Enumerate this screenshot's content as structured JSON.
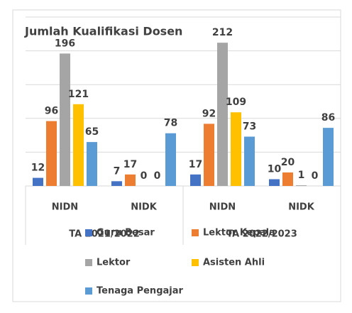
{
  "chart_data": {
    "type": "bar",
    "title": "Jumlah Kualifikasi Dosen",
    "categories": [
      "NIDN",
      "NIDK",
      "NIDN",
      "NIDK"
    ],
    "groups": [
      "TA 2021/2022",
      "TA 2022/2023"
    ],
    "series": [
      {
        "name": "Guru Besar",
        "color": "#4472c4",
        "values": [
          12,
          7,
          17,
          10
        ]
      },
      {
        "name": "Lektor Kepala",
        "color": "#ed7d31",
        "values": [
          96,
          17,
          92,
          20
        ]
      },
      {
        "name": "Lektor",
        "color": "#a5a5a5",
        "values": [
          196,
          0,
          212,
          1
        ]
      },
      {
        "name": "Asisten Ahli",
        "color": "#ffc000",
        "values": [
          121,
          0,
          109,
          0
        ]
      },
      {
        "name": "Tenaga Pengajar",
        "color": "#5b9bd5",
        "values": [
          65,
          78,
          73,
          86
        ]
      }
    ],
    "ylim": [
      0,
      250
    ],
    "yticks": [
      0,
      50,
      100,
      150,
      200,
      250
    ],
    "grid": true
  }
}
